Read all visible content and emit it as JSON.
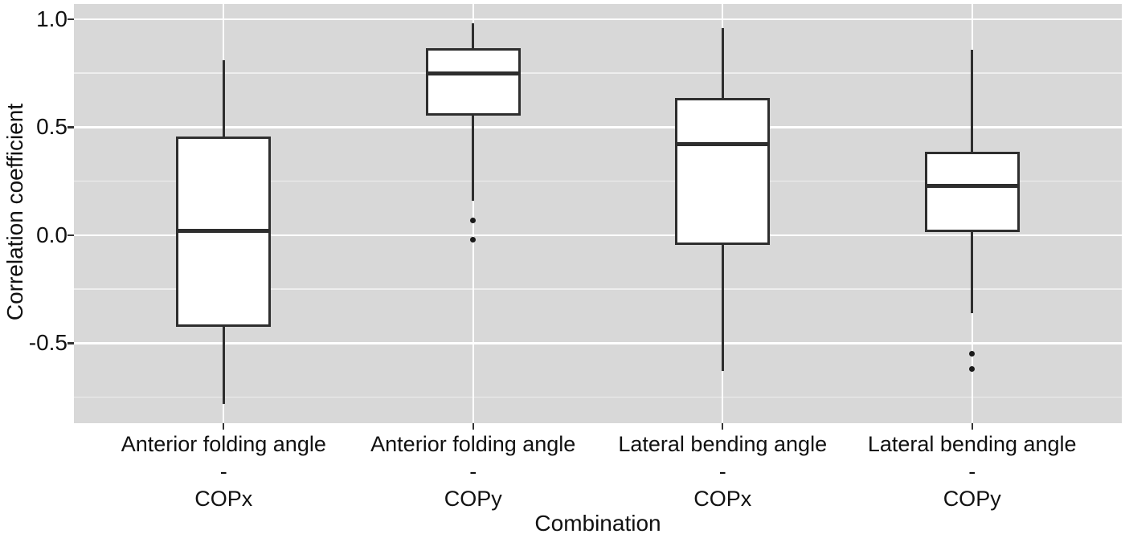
{
  "figure": {
    "y_axis_title": "Correlation coefficient",
    "x_axis_title": "Combination"
  },
  "chart_data": {
    "type": "boxplot",
    "title": "",
    "xlabel": "Combination",
    "ylabel": "Correlation coefficient",
    "ylim": [
      -0.87,
      1.07
    ],
    "y_major_ticks": [
      1.0,
      0.5,
      0.0,
      -0.5
    ],
    "y_tick_labels": [
      "1.0",
      "0.5",
      "0.0",
      "-0.5"
    ],
    "y_minor_ticks": [
      0.75,
      0.25,
      -0.25,
      -0.75
    ],
    "grid": "horizontal major+minor white lines; vertical white major line at each category center",
    "legend_position": "none",
    "categories": [
      [
        "Anterior folding angle",
        "-",
        "COPx"
      ],
      [
        "Anterior folding angle",
        "-",
        "COPy"
      ],
      [
        "Lateral bending angle",
        "-",
        "COPx"
      ],
      [
        "Lateral bending angle",
        "-",
        "COPy"
      ]
    ],
    "series": [
      {
        "category": "Anterior folding angle - COPx",
        "whisker_low": -0.78,
        "q1": -0.42,
        "median": 0.02,
        "q3": 0.45,
        "whisker_high": 0.81,
        "outliers": []
      },
      {
        "category": "Anterior folding angle - COPy",
        "whisker_low": 0.16,
        "q1": 0.56,
        "median": 0.75,
        "q3": 0.86,
        "whisker_high": 0.98,
        "outliers": [
          0.07,
          -0.02
        ]
      },
      {
        "category": "Lateral bending angle - COPx",
        "whisker_low": -0.63,
        "q1": -0.04,
        "median": 0.42,
        "q3": 0.63,
        "whisker_high": 0.96,
        "outliers": []
      },
      {
        "category": "Lateral bending angle - COPy",
        "whisker_low": -0.36,
        "q1": 0.02,
        "median": 0.23,
        "q3": 0.38,
        "whisker_high": 0.86,
        "outliers": [
          -0.55,
          -0.62
        ]
      }
    ],
    "colors": {
      "panel_background": "#d8d8d8",
      "grid_major": "#ffffff",
      "grid_minor": "#eeeeee",
      "box_fill": "#ffffff",
      "box_border": "#2e2e2e",
      "outlier": "#1a1a1a",
      "text": "#111111"
    }
  }
}
